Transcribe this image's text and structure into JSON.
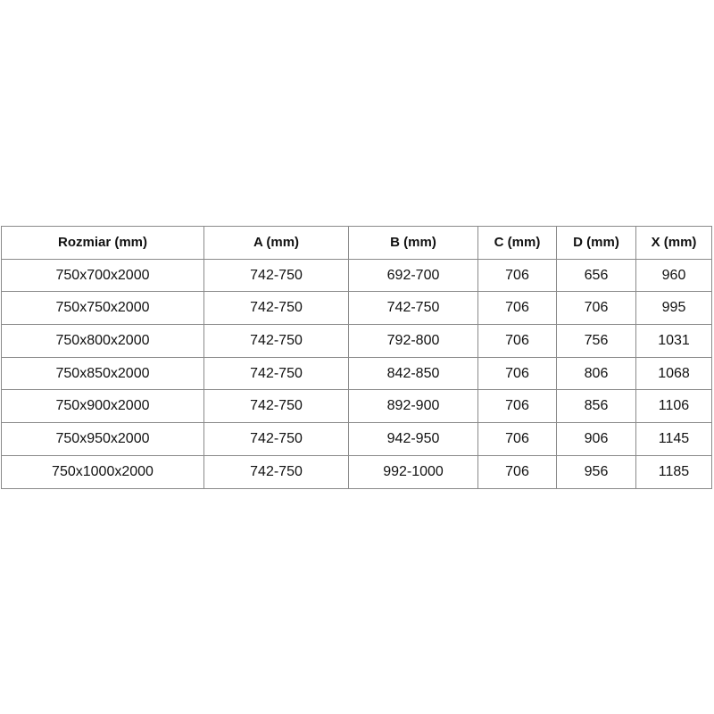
{
  "table": {
    "headers": [
      "Rozmiar (mm)",
      "A (mm)",
      "B (mm)",
      "C (mm)",
      "D (mm)",
      "X (mm)"
    ],
    "rows": [
      [
        "750x700x2000",
        "742-750",
        "692-700",
        "706",
        "656",
        "960"
      ],
      [
        "750x750x2000",
        "742-750",
        "742-750",
        "706",
        "706",
        "995"
      ],
      [
        "750x800x2000",
        "742-750",
        "792-800",
        "706",
        "756",
        "1031"
      ],
      [
        "750x850x2000",
        "742-750",
        "842-850",
        "706",
        "806",
        "1068"
      ],
      [
        "750x900x2000",
        "742-750",
        "892-900",
        "706",
        "856",
        "1106"
      ],
      [
        "750x950x2000",
        "742-750",
        "942-950",
        "706",
        "906",
        "1145"
      ],
      [
        "750x1000x2000",
        "742-750",
        "992-1000",
        "706",
        "956",
        "1185"
      ]
    ]
  }
}
